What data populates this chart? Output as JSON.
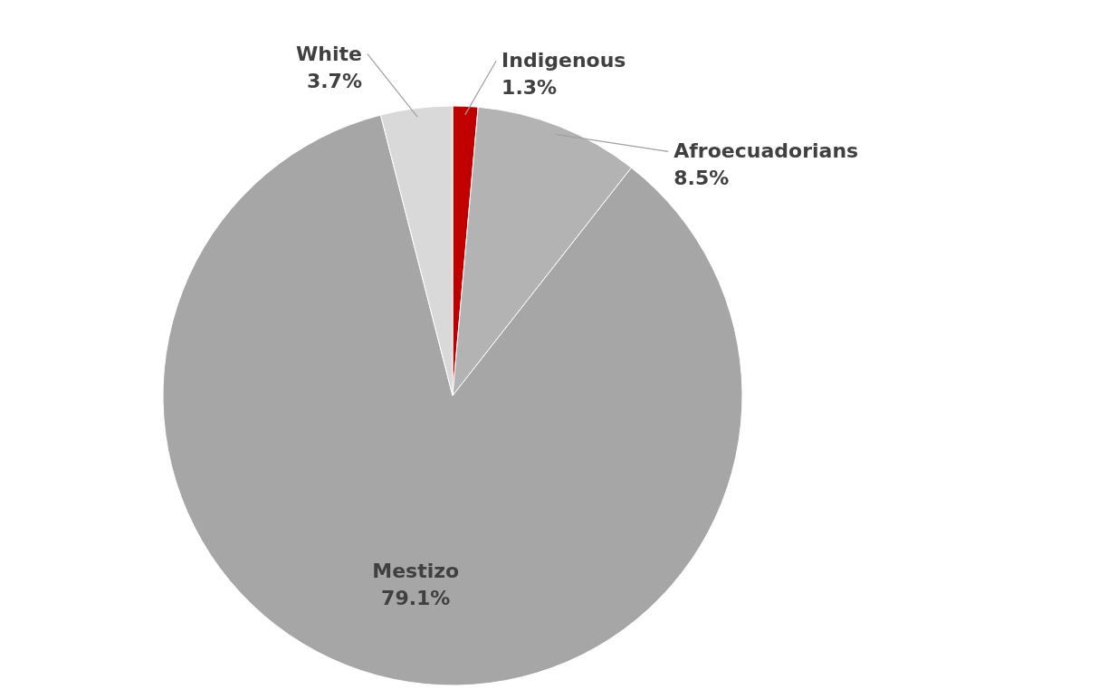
{
  "chart_data": {
    "type": "pie",
    "categories": [
      "Indigenous",
      "Afroecuadorians",
      "Mestizo",
      "White"
    ],
    "values": [
      1.3,
      8.5,
      79.1,
      3.7
    ],
    "colors": [
      "#c00000",
      "#b3b3b3",
      "#a6a6a6",
      "#d9d9d9"
    ],
    "value_labels": [
      "1.3%",
      "8.5%",
      "79.1%",
      "3.7%"
    ]
  }
}
